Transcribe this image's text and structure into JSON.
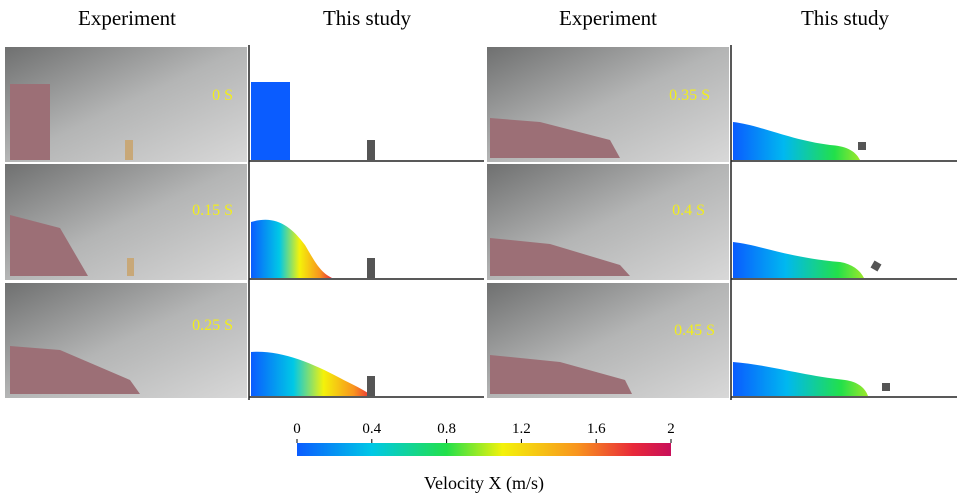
{
  "headers": [
    "Experiment",
    "This study",
    "Experiment",
    "This study"
  ],
  "panels": [
    {
      "time": "0 S"
    },
    {
      "time": "0.15 S"
    },
    {
      "time": "0.25 S"
    },
    {
      "time": "0.35 S"
    },
    {
      "time": "0.4 S"
    },
    {
      "time": "0.45 S"
    }
  ],
  "colorbar": {
    "label": "Velocity X (m/s)",
    "lim": [
      0,
      2
    ],
    "ticks": [
      0,
      0.4,
      0.8,
      1.2,
      1.6,
      2
    ]
  }
}
